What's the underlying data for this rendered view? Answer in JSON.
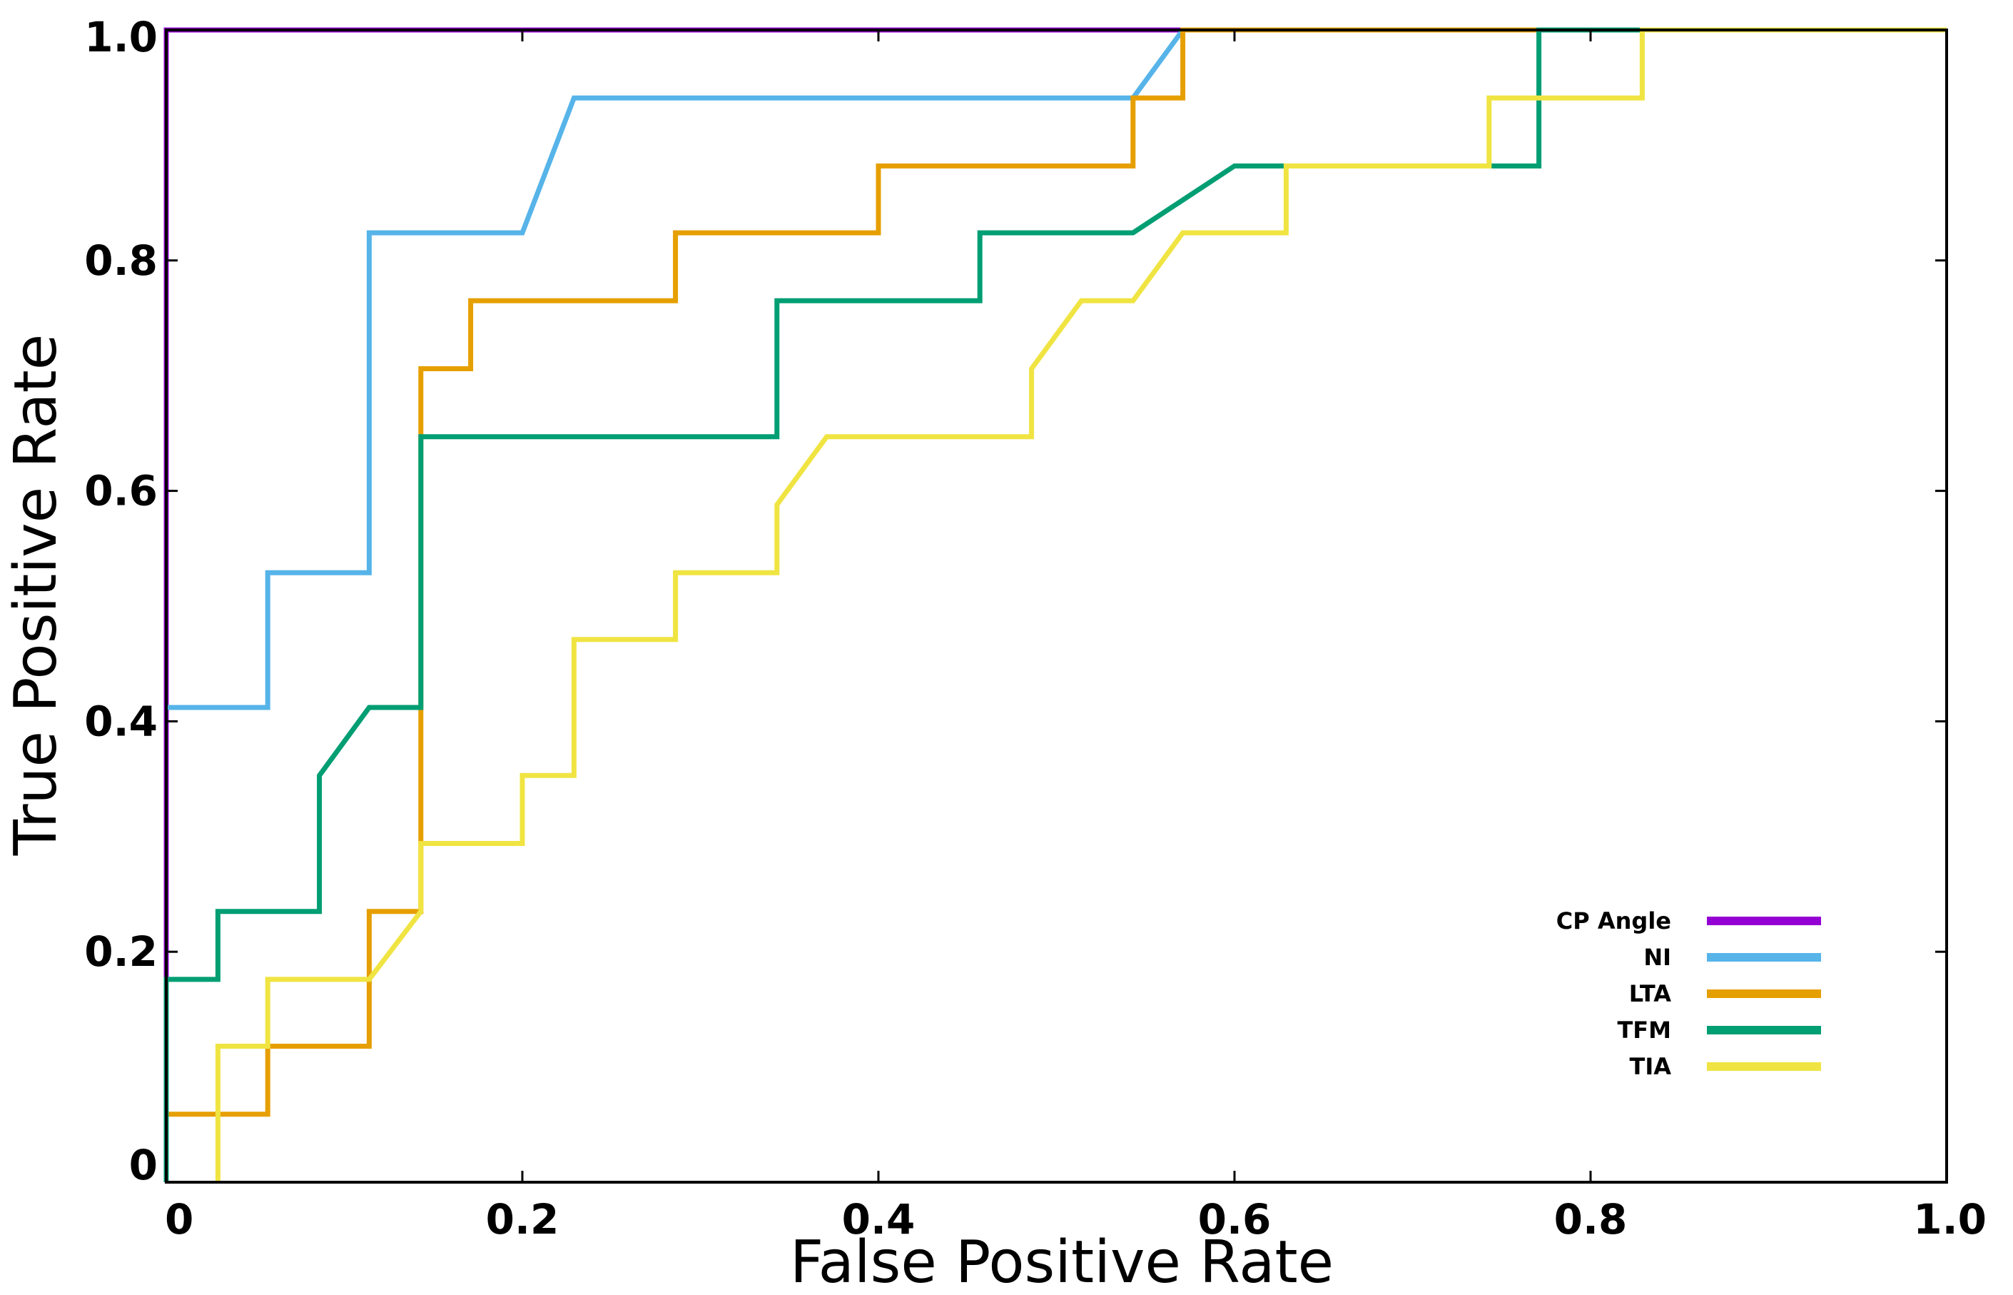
{
  "chart_data": {
    "type": "line",
    "title": "",
    "xlabel": "False Positive Rate",
    "ylabel": "True Positive Rate",
    "xlim": [
      0,
      1
    ],
    "ylim": [
      0,
      1
    ],
    "x_ticks": [
      0,
      0.2,
      0.4,
      0.6,
      0.8,
      1.0
    ],
    "x_tick_labels": [
      "0",
      "0.2",
      "0.4",
      "0.6",
      "0.8",
      "1.0"
    ],
    "y_ticks": [
      0,
      0.2,
      0.4,
      0.6,
      0.8,
      1.0
    ],
    "y_tick_labels": [
      "0",
      "0.2",
      "0.4",
      "0.6",
      "0.8",
      "1.0"
    ],
    "grid": false,
    "legend_position": "bottom-right",
    "series": [
      {
        "name": "CP Angle",
        "color": "#9400d3",
        "x": [
          0,
          0,
          1.0
        ],
        "y": [
          0,
          1.0,
          1.0
        ]
      },
      {
        "name": "NI",
        "color": "#56b4e9",
        "x": [
          0,
          0.057,
          0.057,
          0.114,
          0.114,
          0.2,
          0.229,
          0.543,
          0.571,
          1.0
        ],
        "y": [
          0.412,
          0.412,
          0.529,
          0.529,
          0.824,
          0.824,
          0.941,
          0.941,
          1.0,
          1.0
        ]
      },
      {
        "name": "LTA",
        "color": "#e69f00",
        "x": [
          0,
          0.057,
          0.057,
          0.114,
          0.114,
          0.143,
          0.143,
          0.171,
          0.171,
          0.286,
          0.286,
          0.4,
          0.4,
          0.543,
          0.543,
          0.571,
          0.571,
          1.0
        ],
        "y": [
          0.059,
          0.059,
          0.118,
          0.118,
          0.235,
          0.235,
          0.706,
          0.706,
          0.765,
          0.765,
          0.824,
          0.824,
          0.882,
          0.882,
          0.941,
          0.941,
          1.0,
          1.0
        ]
      },
      {
        "name": "TFM",
        "color": "#009e73",
        "x": [
          0,
          0,
          0.029,
          0.029,
          0.086,
          0.086,
          0.114,
          0.143,
          0.143,
          0.343,
          0.343,
          0.457,
          0.457,
          0.543,
          0.6,
          0.629,
          0.743,
          0.771,
          0.771,
          1.0
        ],
        "y": [
          0,
          0.176,
          0.176,
          0.235,
          0.235,
          0.353,
          0.412,
          0.412,
          0.647,
          0.647,
          0.765,
          0.765,
          0.824,
          0.824,
          0.882,
          0.882,
          0.882,
          0.882,
          1.0,
          1.0
        ]
      },
      {
        "name": "TIA",
        "color": "#f0e442",
        "x": [
          0.029,
          0.029,
          0.057,
          0.057,
          0.114,
          0.143,
          0.143,
          0.2,
          0.2,
          0.229,
          0.229,
          0.286,
          0.286,
          0.343,
          0.343,
          0.371,
          0.486,
          0.486,
          0.514,
          0.543,
          0.571,
          0.629,
          0.629,
          0.743,
          0.743,
          0.829,
          0.829,
          1.0
        ],
        "y": [
          0,
          0.118,
          0.118,
          0.176,
          0.176,
          0.235,
          0.294,
          0.294,
          0.353,
          0.353,
          0.471,
          0.471,
          0.529,
          0.529,
          0.588,
          0.647,
          0.647,
          0.706,
          0.765,
          0.765,
          0.824,
          0.824,
          0.882,
          0.882,
          0.941,
          0.941,
          1.0,
          1.0
        ]
      }
    ]
  }
}
